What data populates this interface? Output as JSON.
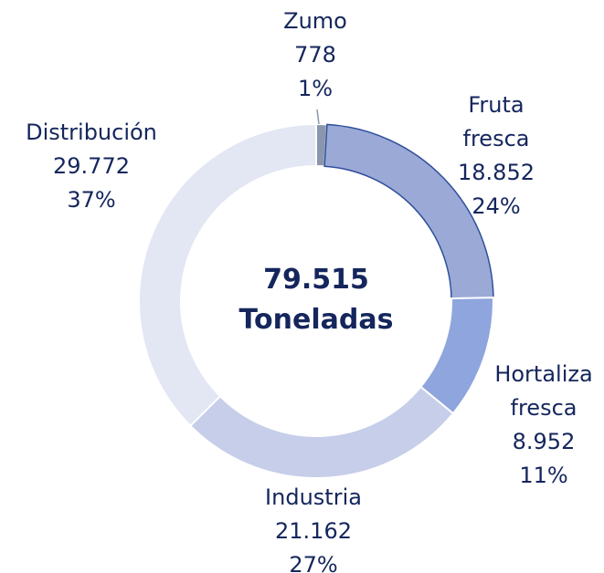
{
  "chart_data": {
    "type": "donut",
    "categories": [
      "Zumo",
      "Fruta fresca",
      "Hortaliza fresca",
      "Industria",
      "Distribución"
    ],
    "values": [
      778,
      18852,
      8952,
      21162,
      29772
    ],
    "value_labels": [
      "778",
      "18.852",
      "8.952",
      "21.162",
      "29.772"
    ],
    "percents": [
      1,
      24,
      11,
      27,
      37
    ],
    "percent_labels": [
      "1%",
      "24%",
      "11%",
      "27%",
      "37%"
    ],
    "colors": [
      "#8a96ad",
      "#9ba9d7",
      "#8fa5dd",
      "#c6cee9",
      "#e3e6f3"
    ],
    "total": 79515,
    "total_label": "79.515",
    "center_label": "Toneladas"
  }
}
